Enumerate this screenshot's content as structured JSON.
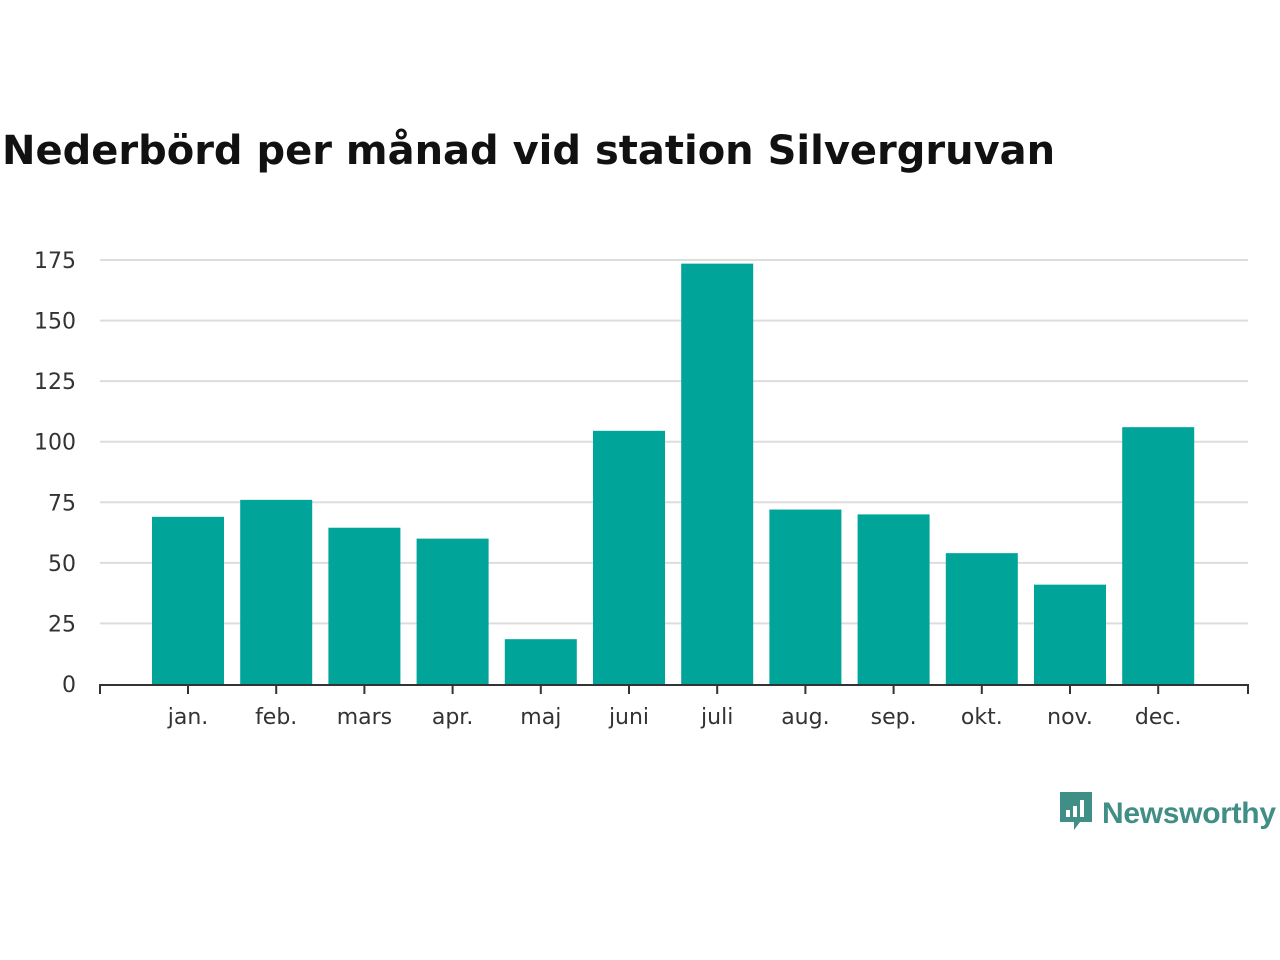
{
  "chart_data": {
    "type": "bar",
    "title": "Nederbörd per månad vid station Silvergruvan",
    "xlabel": "",
    "ylabel": "",
    "categories": [
      "jan.",
      "feb.",
      "mars",
      "apr.",
      "maj",
      "juni",
      "juli",
      "aug.",
      "sep.",
      "okt.",
      "nov.",
      "dec."
    ],
    "values": [
      69,
      76,
      64.5,
      60,
      18.5,
      104.5,
      173.5,
      72,
      70,
      54,
      41,
      106
    ],
    "ylim": [
      0,
      175
    ],
    "yticks": [
      0,
      25,
      50,
      75,
      100,
      125,
      150,
      175
    ],
    "grid": true,
    "legend": "none",
    "bar_color": "#00a499"
  },
  "branding": {
    "logo_text": "Newsworthy",
    "logo_color": "#3f8f86"
  }
}
